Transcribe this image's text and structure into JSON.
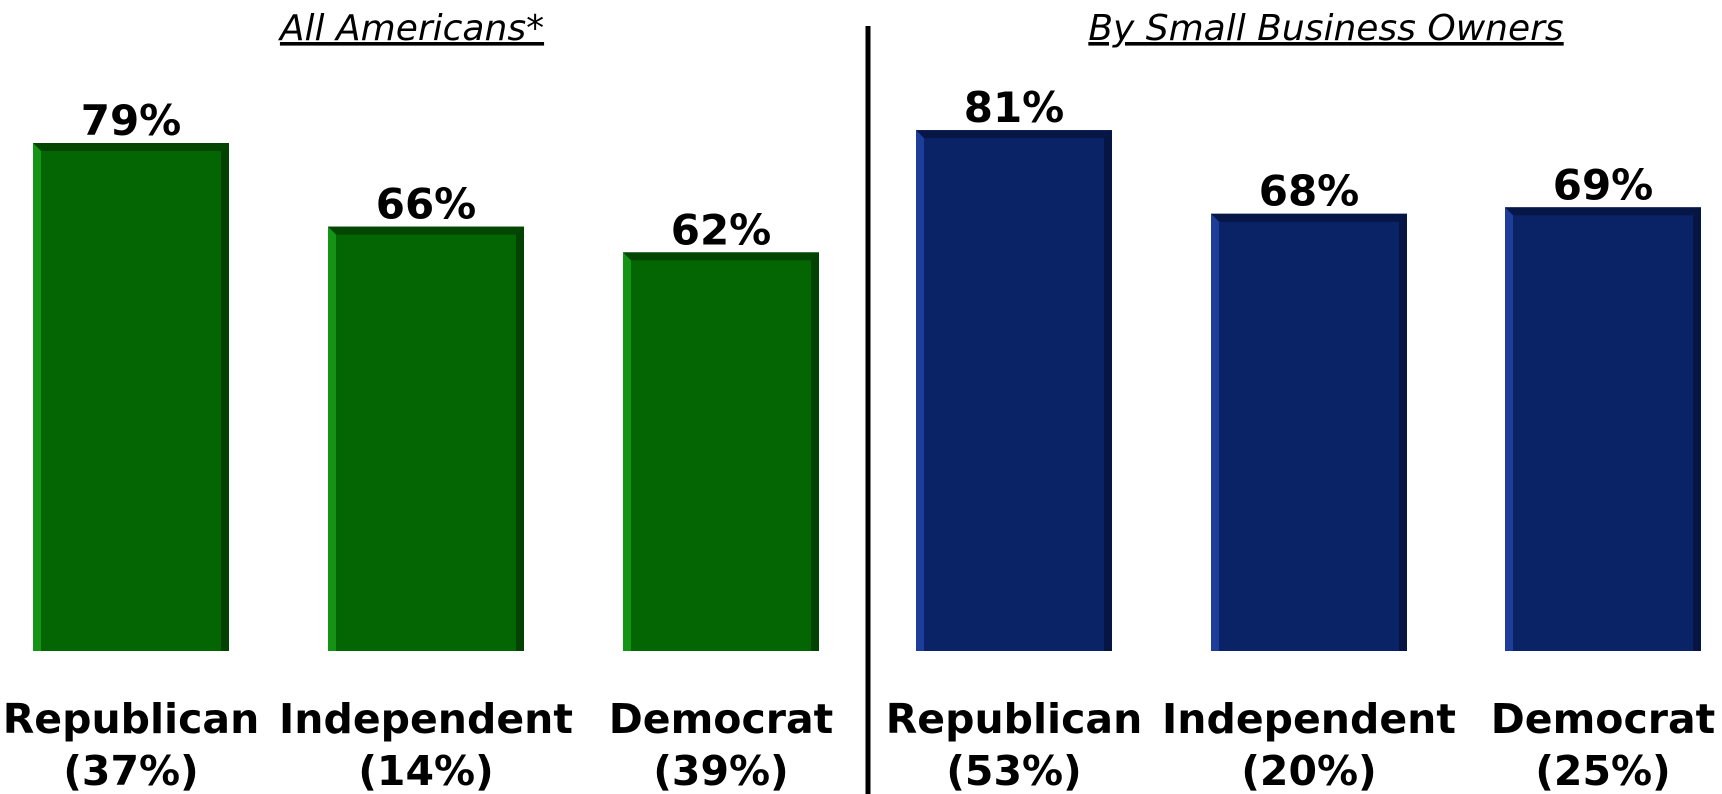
{
  "chart_data": [
    {
      "type": "bar",
      "title": "All Americans*",
      "categories": [
        "Republican",
        "Independent",
        "Democrat"
      ],
      "category_sublabels": [
        "(37%)",
        "(14%)",
        "(39%)"
      ],
      "values": [
        79,
        66,
        62
      ],
      "value_labels": [
        "79%",
        "66%",
        "62%"
      ],
      "ylim": [
        0,
        100
      ],
      "grid": false,
      "colors": {
        "bar": "#036603",
        "bar_light": "#149414",
        "bar_dark": "#024202"
      }
    },
    {
      "type": "bar",
      "title": "By Small Business Owners",
      "categories": [
        "Republican",
        "Independent",
        "Democrat"
      ],
      "category_sublabels": [
        "(53%)",
        "(20%)",
        "(25%)"
      ],
      "values": [
        81,
        68,
        69
      ],
      "value_labels": [
        "81%",
        "68%",
        "69%"
      ],
      "ylim": [
        0,
        100
      ],
      "grid": false,
      "colors": {
        "bar": "#0a2266",
        "bar_light": "#1e3c99",
        "bar_dark": "#061543"
      }
    }
  ]
}
